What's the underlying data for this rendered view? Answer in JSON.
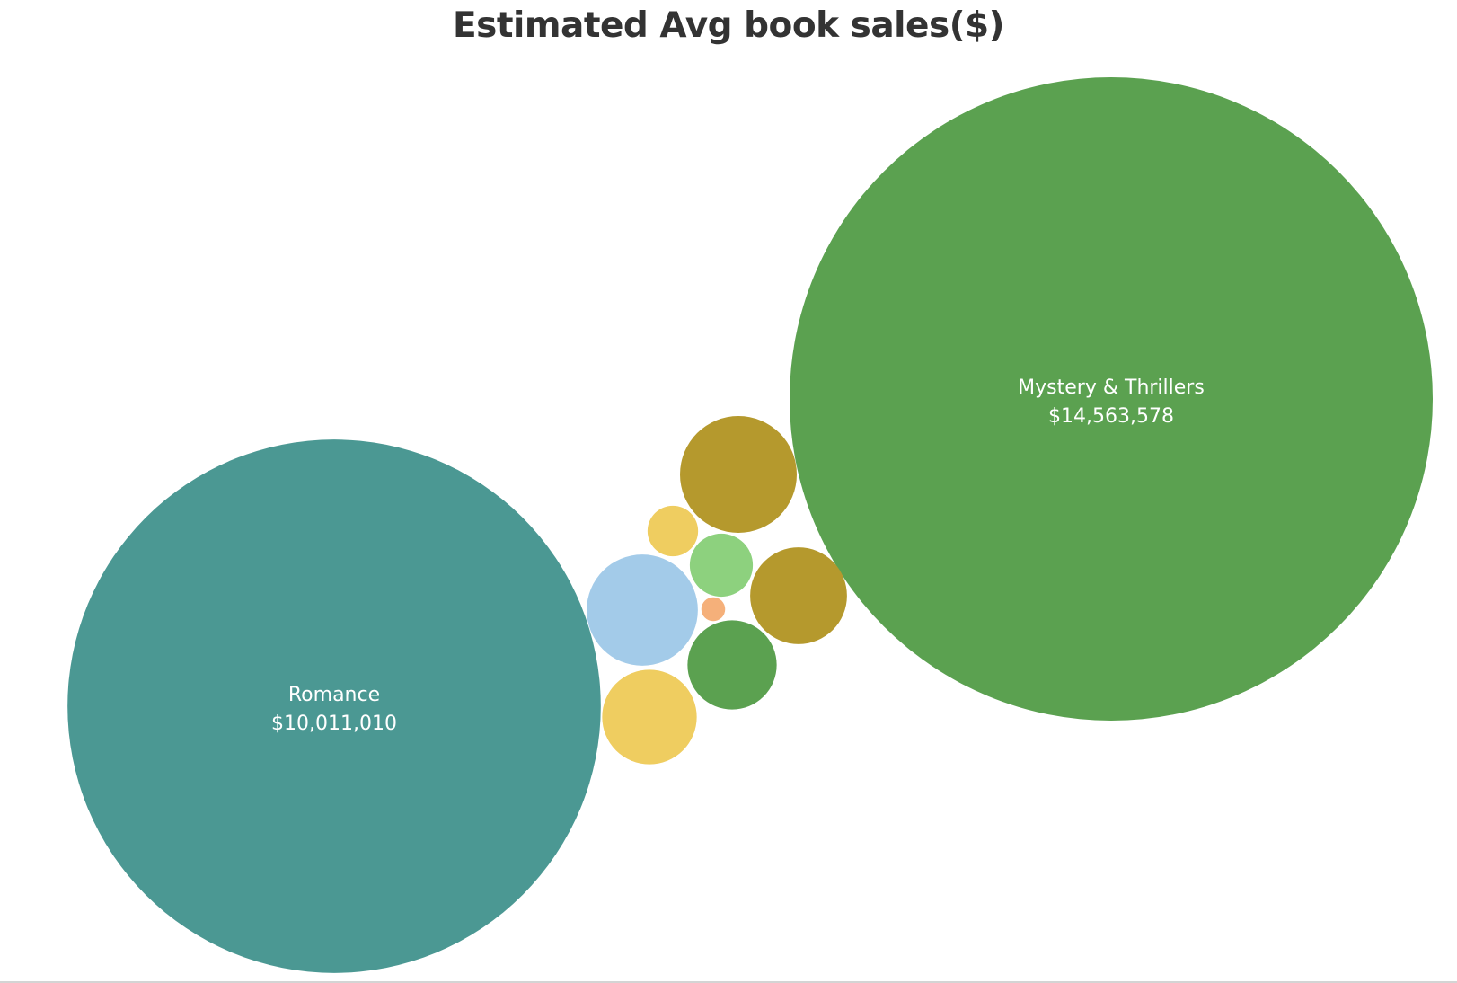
{
  "chart_data": {
    "type": "bubble",
    "title": "Estimated Avg book sales($)",
    "bubbles": [
      {
        "name": "Mystery & Thrillers",
        "value": 14563578,
        "value_label": "$14,563,578",
        "color": "#5ba150"
      },
      {
        "name": "Romance",
        "value": 10011010,
        "value_label": "$10,011,010",
        "color": "#4b9893"
      },
      {
        "name": "",
        "value": 480000,
        "value_label": "",
        "color": "#b5992d"
      },
      {
        "name": "",
        "value": 330000,
        "value_label": "",
        "color": "#b5992d"
      },
      {
        "name": "",
        "value": 435000,
        "value_label": "",
        "color": "#a3cbe9"
      },
      {
        "name": "",
        "value": 315000,
        "value_label": "",
        "color": "#efcd60"
      },
      {
        "name": "",
        "value": 280000,
        "value_label": "",
        "color": "#5ba150"
      },
      {
        "name": "",
        "value": 140000,
        "value_label": "",
        "color": "#8dd17e"
      },
      {
        "name": "",
        "value": 90000,
        "value_label": "",
        "color": "#efcd60"
      },
      {
        "name": "",
        "value": 20000,
        "value_label": "",
        "color": "#f5b07a"
      }
    ]
  }
}
